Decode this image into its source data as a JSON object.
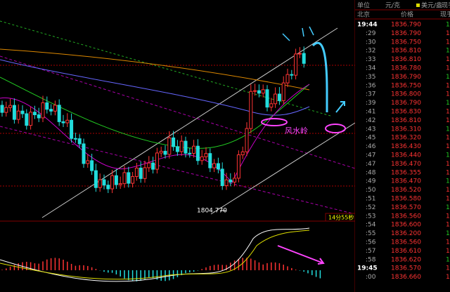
{
  "header": {
    "unit": "单位",
    "unit_value": "元/克",
    "currency": "美元/盎",
    "extra": "现手",
    "place": "北京",
    "price_label": "价格",
    "hands_label": "现手"
  },
  "ticks": {
    "rows": [
      [
        "19:44",
        "1836.790",
        "1"
      ],
      [
        ":29",
        "1836.790",
        "1"
      ],
      [
        ":30",
        "1836.750",
        "1"
      ],
      [
        ":32",
        "1836.810",
        "1"
      ],
      [
        ":33",
        "1836.810",
        "1"
      ],
      [
        ":34",
        "1836.780",
        "1"
      ],
      [
        ":35",
        "1836.790",
        "1"
      ],
      [
        ":36",
        "1836.750",
        "1"
      ],
      [
        ":37",
        "1836.800",
        "1"
      ],
      [
        ":39",
        "1836.790",
        "1"
      ],
      [
        ":41",
        "1836.830",
        "1"
      ],
      [
        ":42",
        "1836.810",
        "1"
      ],
      [
        ":43",
        "1836.310",
        "1"
      ],
      [
        ":45",
        "1836.320",
        "1"
      ],
      [
        ":46",
        "1836.430",
        "1"
      ],
      [
        ":47",
        "1836.440",
        "1"
      ],
      [
        ":47",
        "1836.470",
        "1"
      ],
      [
        ":48",
        "1836.355",
        "1"
      ],
      [
        ":49",
        "1836.470",
        "1"
      ],
      [
        ":50",
        "1836.520",
        "1"
      ],
      [
        ":51",
        "1836.580",
        "1"
      ],
      [
        ":52",
        "1836.570",
        "1"
      ],
      [
        ":53",
        "1836.560",
        "1"
      ],
      [
        ":54",
        "1836.600",
        "1"
      ],
      [
        ":55",
        "1836.200",
        "1"
      ],
      [
        ":56",
        "1836.560",
        "1"
      ],
      [
        ":57",
        "1836.610",
        "1"
      ],
      [
        ":58",
        "1836.620",
        "1"
      ],
      [
        "19:45",
        "1836.570",
        "1"
      ],
      [
        ":00",
        "1836.660",
        "1"
      ]
    ]
  },
  "chart": {
    "low_label": "1804.770",
    "countdown": "14分55秒",
    "annotation": "风水岭"
  }
}
